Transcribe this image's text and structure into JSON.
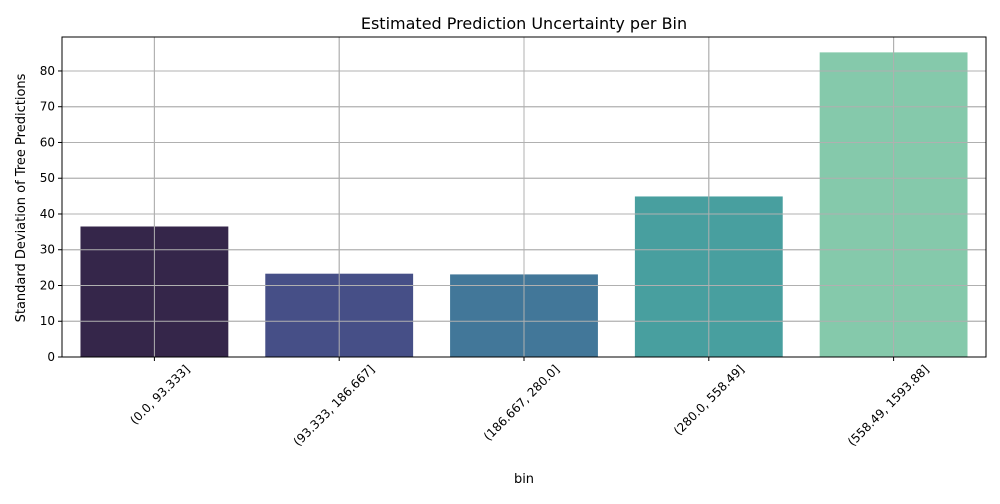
{
  "chart_data": {
    "type": "bar",
    "title": "Estimated Prediction Uncertainty per Bin",
    "xlabel": "bin",
    "ylabel": "Standard Deviation of Tree Predictions",
    "categories": [
      "(0.0, 93.333]",
      "(93.333, 186.667]",
      "(186.667, 280.0]",
      "(280.0, 558.49]",
      "(558.49, 1593.88]"
    ],
    "values": [
      36.5,
      23.3,
      23.1,
      44.9,
      85.2
    ],
    "colors": [
      "#35264a",
      "#464f87",
      "#427799",
      "#489f9f",
      "#85c9ab"
    ],
    "ylim": [
      0,
      89.5
    ],
    "yticks": [
      0,
      10,
      20,
      30,
      40,
      50,
      60,
      70,
      80
    ],
    "grid": true,
    "legend": "none"
  }
}
